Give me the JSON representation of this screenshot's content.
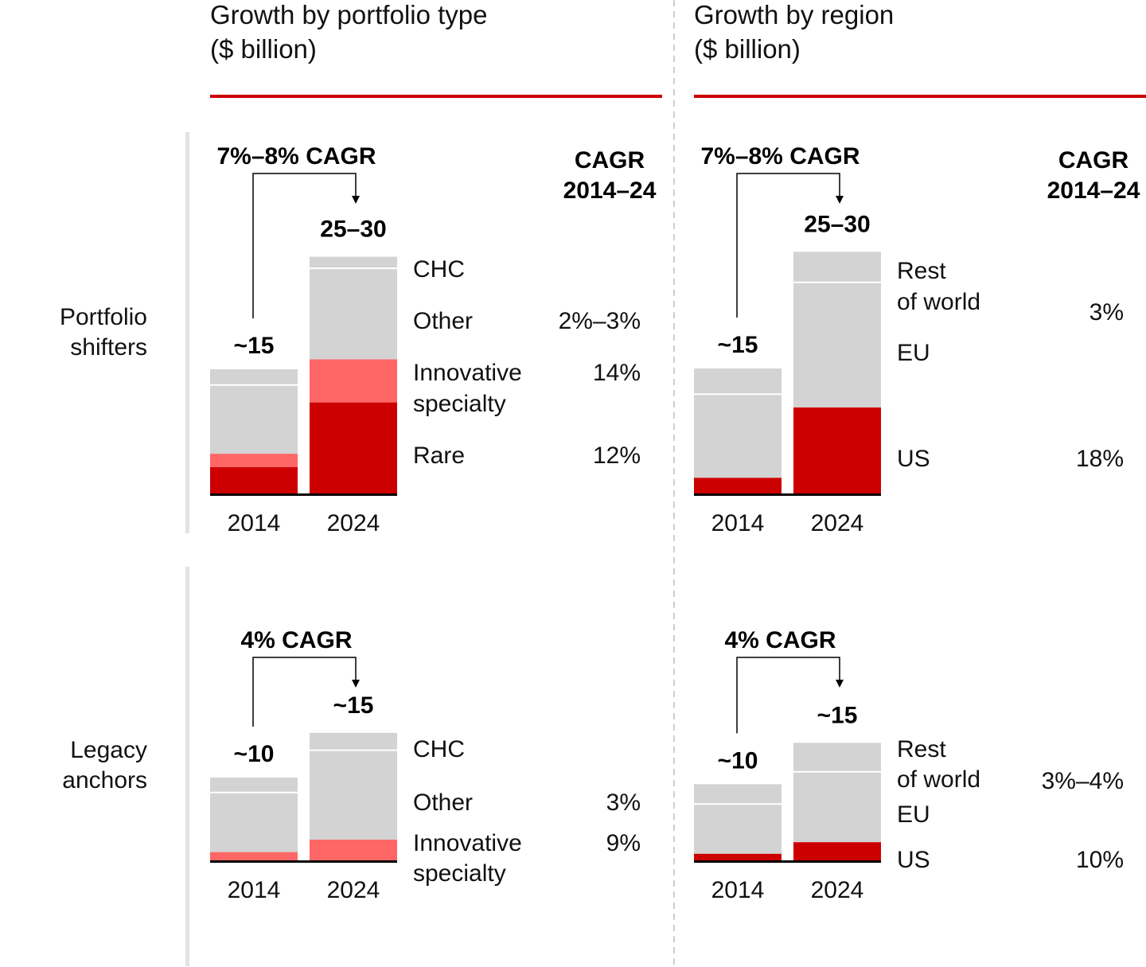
{
  "colors": {
    "gray": "#d3d3d3",
    "red": "#cc0000",
    "pink": "#ff6666",
    "accent_rule": "#cc0000"
  },
  "panels": [
    {
      "title_line1": "Growth by portfolio type",
      "title_line2": "($ billion)"
    },
    {
      "title_line1": "Growth by region",
      "title_line2": "($ billion)"
    }
  ],
  "rows": [
    {
      "label_line1": "Portfolio",
      "label_line2": "shifters"
    },
    {
      "label_line1": "Legacy",
      "label_line2": "anchors"
    }
  ],
  "cagr_header": {
    "line1": "CAGR",
    "line2": "2014–24"
  },
  "chart_data": [
    {
      "type": "bar",
      "stacked": true,
      "panel": "Growth by portfolio type ($ billion)",
      "row": "Portfolio shifters",
      "categories": [
        "2014",
        "2024"
      ],
      "totals": [
        "~15",
        "25–30"
      ],
      "growth_label": "7%–8% CAGR",
      "series": [
        {
          "name": "Rare",
          "color": "#cc0000",
          "values": [
            3.2,
            11.0
          ],
          "cagr": "12%"
        },
        {
          "name": "Innovative specialty",
          "label_lines": [
            "Innovative",
            "specialty"
          ],
          "color": "#ff6666",
          "values": [
            1.6,
            5.2
          ],
          "cagr": "14%"
        },
        {
          "name": "Other",
          "color": "#d3d3d3",
          "values": [
            8.3,
            11.0
          ],
          "cagr": "2%–3%"
        },
        {
          "name": "CHC",
          "color": "#d3d3d3",
          "values": [
            1.9,
            1.4
          ],
          "cagr": ""
        }
      ]
    },
    {
      "type": "bar",
      "stacked": true,
      "panel": "Growth by region ($ billion)",
      "row": "Portfolio shifters",
      "categories": [
        "2014",
        "2024"
      ],
      "totals": [
        "~15",
        "25–30"
      ],
      "growth_label": "7%–8% CAGR",
      "series": [
        {
          "name": "US",
          "color": "#cc0000",
          "values": [
            1.9,
            10.4
          ],
          "cagr": "18%"
        },
        {
          "name": "EU",
          "color": "#d3d3d3",
          "values": [
            10.1,
            15.1
          ],
          "cagr": ""
        },
        {
          "name": "Rest of world",
          "label_lines": [
            "Rest",
            "of world"
          ],
          "color": "#d3d3d3",
          "values": [
            3.1,
            3.7
          ],
          "cagr": "3%"
        }
      ]
    },
    {
      "type": "bar",
      "stacked": true,
      "panel": "Growth by portfolio type ($ billion)",
      "row": "Legacy anchors",
      "categories": [
        "2014",
        "2024"
      ],
      "totals": [
        "~10",
        "~15"
      ],
      "growth_label": "4% CAGR",
      "series": [
        {
          "name": "Innovative specialty",
          "label_lines": [
            "Innovative",
            "specialty"
          ],
          "color": "#ff6666",
          "values": [
            1.0,
            2.5
          ],
          "cagr": "9%"
        },
        {
          "name": "Other",
          "color": "#d3d3d3",
          "values": [
            7.2,
            10.8
          ],
          "cagr": "3%"
        },
        {
          "name": "CHC",
          "color": "#d3d3d3",
          "values": [
            1.8,
            2.1
          ],
          "cagr": ""
        }
      ]
    },
    {
      "type": "bar",
      "stacked": true,
      "panel": "Growth by region ($ billion)",
      "row": "Legacy anchors",
      "categories": [
        "2014",
        "2024"
      ],
      "totals": [
        "~10",
        "~15"
      ],
      "growth_label": "4% CAGR",
      "series": [
        {
          "name": "US",
          "color": "#cc0000",
          "values": [
            0.8,
            2.2
          ],
          "cagr": "10%"
        },
        {
          "name": "EU",
          "color": "#d3d3d3",
          "values": [
            6.0,
            8.5
          ],
          "cagr": ""
        },
        {
          "name": "Rest of world",
          "label_lines": [
            "Rest",
            "of world"
          ],
          "color": "#d3d3d3",
          "values": [
            2.4,
            3.5
          ],
          "cagr": "3%–4%"
        }
      ]
    }
  ]
}
